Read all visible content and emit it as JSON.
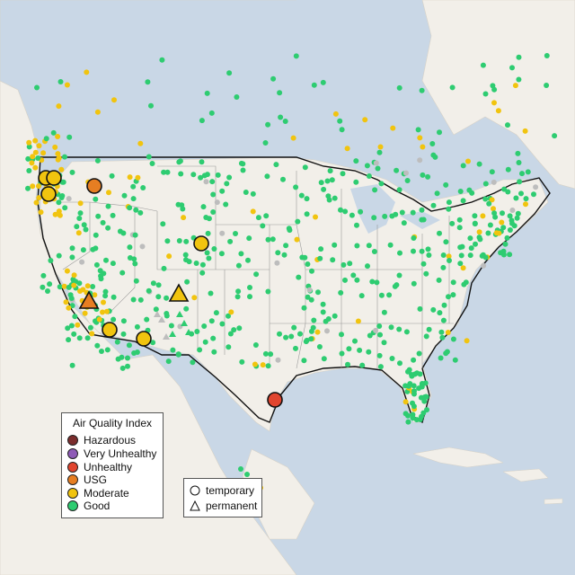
{
  "legend": {
    "title": "Air Quality Index",
    "categories": [
      {
        "label": "Hazardous",
        "color": "#7b2d2d"
      },
      {
        "label": "Very Unhealthy",
        "color": "#8e5ab7"
      },
      {
        "label": "Unhealthy",
        "color": "#e1452f"
      },
      {
        "label": "USG",
        "color": "#e67e22"
      },
      {
        "label": "Moderate",
        "color": "#f1c40f"
      },
      {
        "label": "Good",
        "color": "#2ecc71"
      }
    ],
    "shapes": [
      {
        "label": "temporary",
        "shape": "circle"
      },
      {
        "label": "permanent",
        "shape": "triangle"
      }
    ]
  },
  "colors": {
    "ocean": "#c9d7e6",
    "land": "#f2efe9",
    "border": "#111111",
    "state_line": "#9a9a9a",
    "no_data": "#bdbdbd"
  }
}
